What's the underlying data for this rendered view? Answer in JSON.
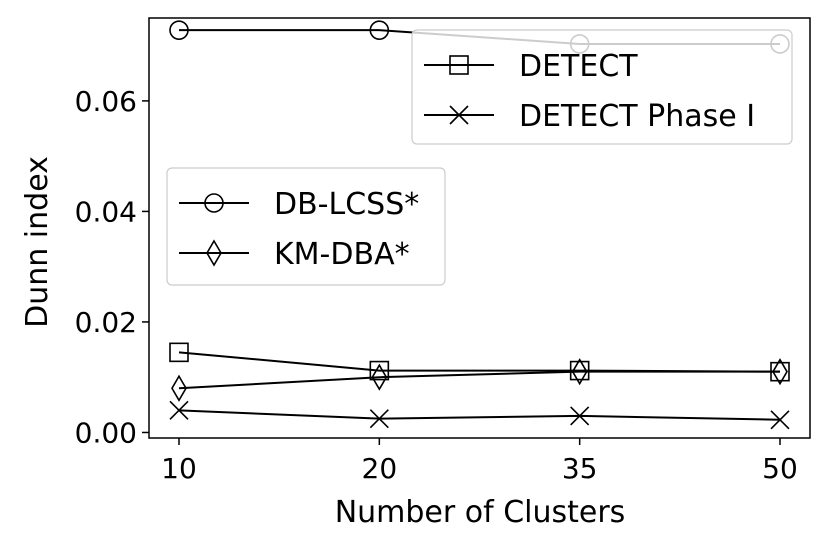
{
  "chart_data": {
    "type": "line",
    "xlabel": "Number of Clusters",
    "ylabel": "Dunn index",
    "categories": [
      "10",
      "20",
      "35",
      "50"
    ],
    "ylim": [
      -0.001,
      0.075
    ],
    "yticks": [
      0.0,
      0.02,
      0.04,
      0.06
    ],
    "ytick_labels": [
      "0.00",
      "0.02",
      "0.04",
      "0.06"
    ],
    "grid": false,
    "series": [
      {
        "name": "DETECT",
        "marker": "square",
        "values": [
          0.0145,
          0.0112,
          0.0112,
          0.011
        ]
      },
      {
        "name": "DETECT Phase I",
        "marker": "x",
        "values": [
          0.004,
          0.0025,
          0.003,
          0.0023
        ]
      },
      {
        "name": "DB-LCSS*",
        "marker": "circle",
        "values": [
          0.0728,
          0.0728,
          0.0703,
          0.0703
        ]
      },
      {
        "name": "KM-DBA*",
        "marker": "diamond",
        "values": [
          0.008,
          0.01,
          0.011,
          0.011
        ]
      }
    ],
    "legends": [
      {
        "placement": "upper-right",
        "entries": [
          "DETECT",
          "DETECT Phase I"
        ]
      },
      {
        "placement": "center-left",
        "entries": [
          "DB-LCSS*",
          "KM-DBA*"
        ]
      }
    ]
  }
}
